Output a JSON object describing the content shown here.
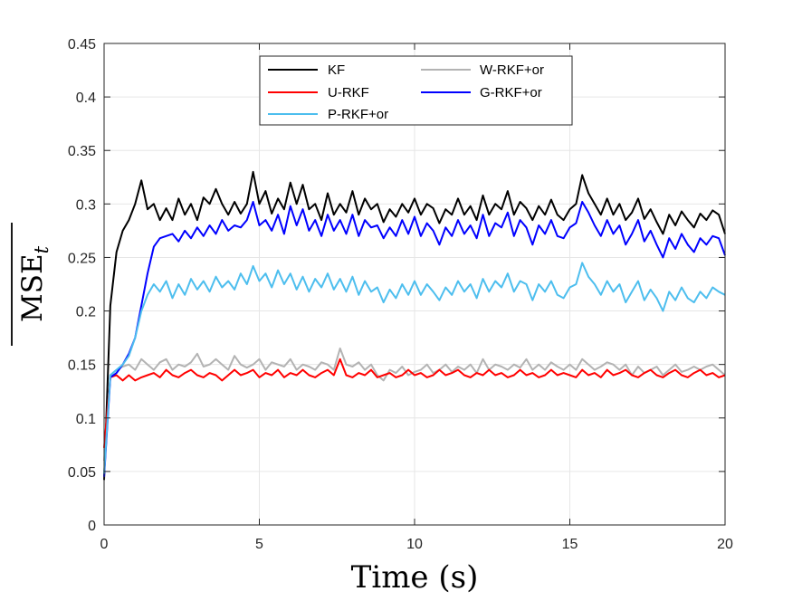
{
  "chart_data": {
    "type": "line",
    "title": "",
    "xlabel": "Time (s)",
    "ylabel_base": "MSE",
    "ylabel_sub": "t",
    "xlim": [
      0,
      20
    ],
    "ylim": [
      0,
      0.45
    ],
    "xticks": [
      0,
      5,
      10,
      15,
      20
    ],
    "xtick_labels": [
      "0",
      "5",
      "10",
      "15",
      "20"
    ],
    "yticks": [
      0,
      0.05,
      0.1,
      0.15,
      0.2,
      0.25,
      0.3,
      0.35,
      0.4,
      0.45
    ],
    "ytick_labels": [
      "0",
      "0.05",
      "0.1",
      "0.15",
      "0.2",
      "0.25",
      "0.3",
      "0.35",
      "0.4",
      "0.45"
    ],
    "grid": true,
    "legend_position": "top-center",
    "x": [
      0.0,
      0.2,
      0.4,
      0.6,
      0.8,
      1.0,
      1.2,
      1.4,
      1.6,
      1.8,
      2.0,
      2.2,
      2.4,
      2.6,
      2.8,
      3.0,
      3.2,
      3.4,
      3.6,
      3.8,
      4.0,
      4.2,
      4.4,
      4.6,
      4.8,
      5.0,
      5.2,
      5.4,
      5.6,
      5.8,
      6.0,
      6.2,
      6.4,
      6.6,
      6.8,
      7.0,
      7.2,
      7.4,
      7.6,
      7.8,
      8.0,
      8.2,
      8.4,
      8.6,
      8.8,
      9.0,
      9.2,
      9.4,
      9.6,
      9.8,
      10.0,
      10.2,
      10.4,
      10.6,
      10.8,
      11.0,
      11.2,
      11.4,
      11.6,
      11.8,
      12.0,
      12.2,
      12.4,
      12.6,
      12.8,
      13.0,
      13.2,
      13.4,
      13.6,
      13.8,
      14.0,
      14.2,
      14.4,
      14.6,
      14.8,
      15.0,
      15.2,
      15.4,
      15.6,
      15.8,
      16.0,
      16.2,
      16.4,
      16.6,
      16.8,
      17.0,
      17.2,
      17.4,
      17.6,
      17.8,
      18.0,
      18.2,
      18.4,
      18.6,
      18.8,
      19.0,
      19.2,
      19.4,
      19.6,
      19.8,
      20.0
    ],
    "series": [
      {
        "name": "KF",
        "color": "#000000",
        "values": [
          0.042,
          0.205,
          0.255,
          0.275,
          0.285,
          0.3,
          0.322,
          0.295,
          0.3,
          0.285,
          0.296,
          0.285,
          0.305,
          0.29,
          0.3,
          0.285,
          0.306,
          0.3,
          0.314,
          0.3,
          0.29,
          0.302,
          0.291,
          0.3,
          0.33,
          0.3,
          0.312,
          0.291,
          0.305,
          0.295,
          0.32,
          0.3,
          0.318,
          0.295,
          0.3,
          0.285,
          0.31,
          0.29,
          0.3,
          0.292,
          0.312,
          0.29,
          0.305,
          0.295,
          0.3,
          0.283,
          0.295,
          0.288,
          0.3,
          0.292,
          0.305,
          0.29,
          0.3,
          0.296,
          0.282,
          0.295,
          0.29,
          0.305,
          0.29,
          0.298,
          0.285,
          0.308,
          0.29,
          0.3,
          0.295,
          0.312,
          0.29,
          0.302,
          0.296,
          0.285,
          0.298,
          0.29,
          0.304,
          0.29,
          0.285,
          0.295,
          0.3,
          0.327,
          0.31,
          0.3,
          0.29,
          0.305,
          0.29,
          0.3,
          0.285,
          0.292,
          0.305,
          0.286,
          0.295,
          0.283,
          0.272,
          0.29,
          0.28,
          0.293,
          0.285,
          0.278,
          0.291,
          0.285,
          0.294,
          0.29,
          0.272
        ]
      },
      {
        "name": "W-RKF+or",
        "color": "#b3b3b3",
        "values": [
          0.06,
          0.14,
          0.145,
          0.148,
          0.15,
          0.145,
          0.155,
          0.15,
          0.145,
          0.152,
          0.155,
          0.145,
          0.15,
          0.148,
          0.152,
          0.16,
          0.148,
          0.15,
          0.155,
          0.15,
          0.145,
          0.158,
          0.15,
          0.147,
          0.15,
          0.155,
          0.145,
          0.152,
          0.15,
          0.148,
          0.155,
          0.145,
          0.15,
          0.148,
          0.145,
          0.152,
          0.15,
          0.145,
          0.165,
          0.15,
          0.148,
          0.152,
          0.145,
          0.15,
          0.14,
          0.135,
          0.145,
          0.142,
          0.148,
          0.14,
          0.143,
          0.145,
          0.15,
          0.142,
          0.145,
          0.15,
          0.143,
          0.148,
          0.145,
          0.15,
          0.142,
          0.155,
          0.145,
          0.15,
          0.148,
          0.145,
          0.15,
          0.147,
          0.155,
          0.145,
          0.15,
          0.145,
          0.152,
          0.148,
          0.145,
          0.15,
          0.145,
          0.155,
          0.15,
          0.145,
          0.148,
          0.152,
          0.15,
          0.145,
          0.15,
          0.14,
          0.148,
          0.142,
          0.145,
          0.148,
          0.14,
          0.145,
          0.15,
          0.143,
          0.145,
          0.148,
          0.145,
          0.148,
          0.15,
          0.145,
          0.14
        ]
      },
      {
        "name": "U-RKF",
        "color": "#ff0000",
        "values": [
          0.072,
          0.138,
          0.14,
          0.135,
          0.14,
          0.135,
          0.138,
          0.14,
          0.142,
          0.138,
          0.145,
          0.14,
          0.138,
          0.142,
          0.145,
          0.14,
          0.138,
          0.142,
          0.14,
          0.135,
          0.14,
          0.145,
          0.14,
          0.142,
          0.145,
          0.138,
          0.142,
          0.14,
          0.145,
          0.138,
          0.142,
          0.14,
          0.145,
          0.14,
          0.138,
          0.142,
          0.145,
          0.14,
          0.155,
          0.14,
          0.138,
          0.142,
          0.14,
          0.145,
          0.138,
          0.14,
          0.142,
          0.138,
          0.14,
          0.145,
          0.14,
          0.142,
          0.138,
          0.14,
          0.145,
          0.14,
          0.142,
          0.145,
          0.14,
          0.138,
          0.142,
          0.14,
          0.145,
          0.14,
          0.142,
          0.138,
          0.14,
          0.145,
          0.14,
          0.142,
          0.138,
          0.14,
          0.145,
          0.14,
          0.142,
          0.14,
          0.138,
          0.145,
          0.14,
          0.142,
          0.138,
          0.145,
          0.14,
          0.142,
          0.145,
          0.14,
          0.138,
          0.142,
          0.145,
          0.14,
          0.138,
          0.142,
          0.145,
          0.14,
          0.138,
          0.142,
          0.145,
          0.14,
          0.142,
          0.138,
          0.14
        ]
      },
      {
        "name": "G-RKF+or",
        "color": "#0000ff",
        "values": [
          0.045,
          0.138,
          0.142,
          0.15,
          0.16,
          0.175,
          0.205,
          0.235,
          0.26,
          0.268,
          0.27,
          0.272,
          0.265,
          0.275,
          0.268,
          0.278,
          0.27,
          0.28,
          0.272,
          0.285,
          0.275,
          0.28,
          0.278,
          0.285,
          0.302,
          0.28,
          0.285,
          0.275,
          0.29,
          0.272,
          0.298,
          0.28,
          0.295,
          0.275,
          0.285,
          0.27,
          0.29,
          0.275,
          0.285,
          0.272,
          0.29,
          0.27,
          0.285,
          0.278,
          0.28,
          0.268,
          0.278,
          0.27,
          0.285,
          0.272,
          0.288,
          0.27,
          0.282,
          0.275,
          0.262,
          0.278,
          0.27,
          0.285,
          0.272,
          0.28,
          0.268,
          0.29,
          0.27,
          0.282,
          0.278,
          0.292,
          0.27,
          0.285,
          0.278,
          0.262,
          0.28,
          0.272,
          0.285,
          0.27,
          0.268,
          0.278,
          0.282,
          0.302,
          0.292,
          0.28,
          0.27,
          0.285,
          0.272,
          0.28,
          0.262,
          0.272,
          0.285,
          0.265,
          0.275,
          0.262,
          0.25,
          0.268,
          0.258,
          0.272,
          0.262,
          0.255,
          0.268,
          0.262,
          0.27,
          0.268,
          0.252
        ]
      },
      {
        "name": "P-RKF+or",
        "color": "#4dbeee",
        "values": [
          0.048,
          0.14,
          0.145,
          0.15,
          0.158,
          0.175,
          0.2,
          0.215,
          0.225,
          0.218,
          0.228,
          0.212,
          0.225,
          0.215,
          0.23,
          0.22,
          0.228,
          0.218,
          0.232,
          0.222,
          0.228,
          0.22,
          0.235,
          0.225,
          0.242,
          0.228,
          0.235,
          0.222,
          0.238,
          0.225,
          0.235,
          0.22,
          0.232,
          0.218,
          0.23,
          0.222,
          0.235,
          0.22,
          0.23,
          0.218,
          0.232,
          0.215,
          0.228,
          0.218,
          0.222,
          0.208,
          0.22,
          0.212,
          0.225,
          0.215,
          0.228,
          0.215,
          0.225,
          0.218,
          0.21,
          0.222,
          0.215,
          0.228,
          0.218,
          0.225,
          0.212,
          0.23,
          0.218,
          0.228,
          0.222,
          0.235,
          0.218,
          0.228,
          0.225,
          0.21,
          0.225,
          0.218,
          0.228,
          0.215,
          0.212,
          0.222,
          0.225,
          0.245,
          0.232,
          0.225,
          0.215,
          0.228,
          0.218,
          0.225,
          0.208,
          0.218,
          0.228,
          0.21,
          0.22,
          0.212,
          0.2,
          0.218,
          0.21,
          0.222,
          0.212,
          0.208,
          0.218,
          0.212,
          0.222,
          0.218,
          0.215
        ]
      }
    ],
    "legend": [
      {
        "label": "KF",
        "color": "#000000"
      },
      {
        "label": "W-RKF+or",
        "color": "#b3b3b3"
      },
      {
        "label": "U-RKF",
        "color": "#ff0000"
      },
      {
        "label": "G-RKF+or",
        "color": "#0000ff"
      },
      {
        "label": "P-RKF+or",
        "color": "#4dbeee"
      }
    ]
  }
}
